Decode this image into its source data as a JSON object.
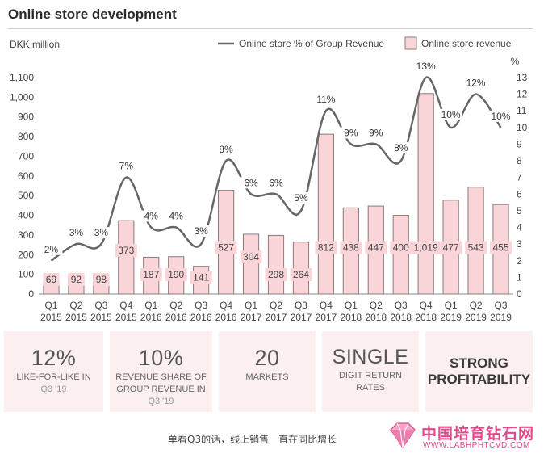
{
  "title": "Online store development",
  "chart_data": {
    "type": "bar",
    "unit_left": "DKK million",
    "unit_right": "%",
    "categories": [
      [
        "Q1",
        "2015"
      ],
      [
        "Q2",
        "2015"
      ],
      [
        "Q3",
        "2015"
      ],
      [
        "Q4",
        "2015"
      ],
      [
        "Q1",
        "2016"
      ],
      [
        "Q2",
        "2016"
      ],
      [
        "Q3",
        "2016"
      ],
      [
        "Q4",
        "2016"
      ],
      [
        "Q1",
        "2017"
      ],
      [
        "Q2",
        "2017"
      ],
      [
        "Q3",
        "2017"
      ],
      [
        "Q4",
        "2017"
      ],
      [
        "Q1",
        "2018"
      ],
      [
        "Q2",
        "2018"
      ],
      [
        "Q3",
        "2018"
      ],
      [
        "Q4",
        "2018"
      ],
      [
        "Q1",
        "2019"
      ],
      [
        "Q2",
        "2019"
      ],
      [
        "Q3",
        "2019"
      ]
    ],
    "series": [
      {
        "name": "Online store revenue",
        "type": "bar",
        "axis": "left",
        "values": [
          69,
          92,
          98,
          373,
          187,
          190,
          141,
          527,
          304,
          298,
          264,
          812,
          438,
          447,
          400,
          1019,
          477,
          543,
          455
        ],
        "labels": [
          "69",
          "92",
          "98",
          "373",
          "187",
          "190",
          "141",
          "527",
          "304",
          "298",
          "264",
          "812",
          "438",
          "447",
          "400",
          "1,019",
          "477",
          "543",
          "455"
        ]
      },
      {
        "name": "Online store % of Group Revenue",
        "type": "line",
        "axis": "right",
        "values": [
          2,
          3,
          3,
          7,
          4,
          4,
          3,
          8,
          6,
          6,
          5,
          11,
          9,
          9,
          8,
          13,
          10,
          12,
          10
        ],
        "labels": [
          "2%",
          "3%",
          "3%",
          "7%",
          "4%",
          "4%",
          "3%",
          "8%",
          "6%",
          "6%",
          "5%",
          "11%",
          "9%",
          "9%",
          "8%",
          "13%",
          "10%",
          "12%",
          "10%"
        ]
      }
    ],
    "ylim": [
      0,
      1100
    ],
    "y_ticks": [
      "0",
      "100",
      "200",
      "300",
      "400",
      "500",
      "600",
      "700",
      "800",
      "900",
      "1,000",
      "1,100"
    ],
    "y2lim": [
      0,
      13
    ],
    "y2_ticks": [
      "0",
      "1",
      "2",
      "3",
      "4",
      "5",
      "6",
      "7",
      "8",
      "9",
      "10",
      "11",
      "12",
      "13"
    ],
    "legend_position": "top-right",
    "colors": {
      "bar_fill": "#fad5d8",
      "bar_stroke": "#8a7a7d",
      "line": "#666666",
      "label_box": "#fad5d8"
    }
  },
  "kpis": [
    {
      "big": "12%",
      "lines": [
        "LIKE-FOR-LIKE IN"
      ],
      "muted": [
        "Q3 '19"
      ]
    },
    {
      "big": "10%",
      "lines": [
        "REVENUE SHARE OF",
        "GROUP REVENUE IN"
      ],
      "muted": [
        "Q3 '19"
      ]
    },
    {
      "big": "20",
      "lines": [
        "MARKETS"
      ],
      "muted": []
    },
    {
      "big": "SINGLE",
      "lines": [
        "DIGIT RETURN",
        "RATES"
      ],
      "muted": []
    },
    {
      "words": [
        "STRONG",
        "PROFITABILITY"
      ]
    }
  ],
  "caption": "单看Q3的话，线上销售一直在同比增长",
  "watermark": {
    "cn": "中国培育钻石网",
    "url": "WWW.LABHPHTCVD.COM"
  }
}
